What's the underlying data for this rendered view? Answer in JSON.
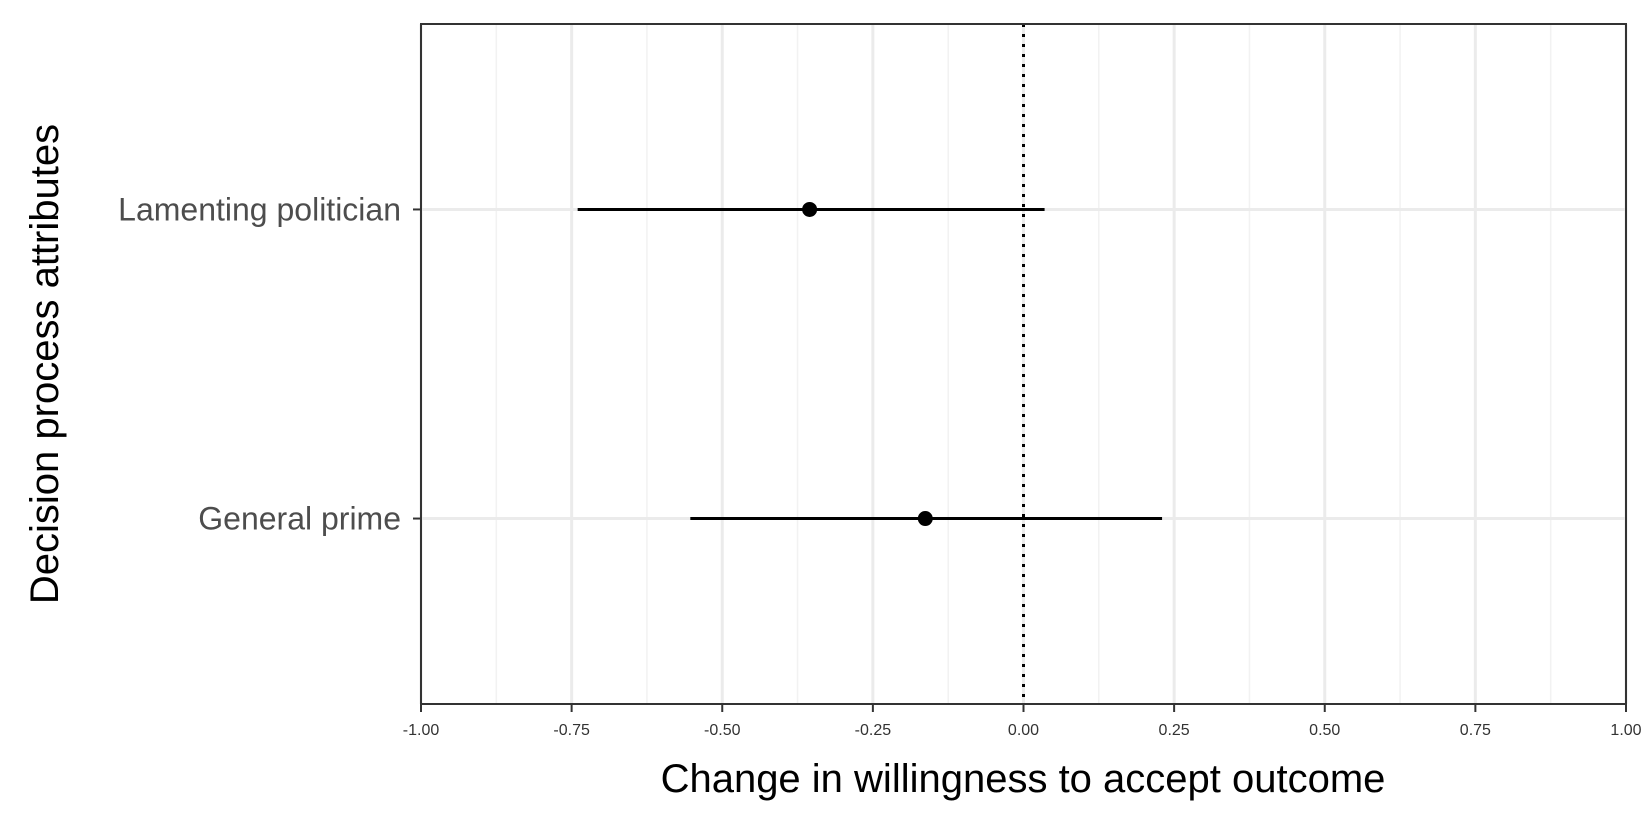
{
  "chart_data": {
    "type": "scatter",
    "subtype": "coefficient-plot-with-intervals",
    "xlabel": "Change in willingness to accept outcome",
    "ylabel": "Decision process attributes",
    "xlim": [
      -1.0,
      1.0
    ],
    "x_ticks": [
      "-1.00",
      "-0.75",
      "-0.50",
      "-0.25",
      "0.00",
      "0.25",
      "0.50",
      "0.75",
      "1.00"
    ],
    "x_tick_values": [
      -1.0,
      -0.75,
      -0.5,
      -0.25,
      0.0,
      0.25,
      0.5,
      0.75,
      1.0
    ],
    "categories": [
      "Lamenting politician",
      "General prime"
    ],
    "points": [
      {
        "label": "Lamenting politician",
        "estimate": -0.355,
        "lower": -0.74,
        "upper": 0.035
      },
      {
        "label": "General prime",
        "estimate": -0.163,
        "lower": -0.553,
        "upper": 0.23
      }
    ],
    "reference_line": {
      "x": 0.0,
      "style": "dotted"
    },
    "grid": true,
    "legend": "none",
    "colors": {
      "panel_border": "#333333",
      "grid_major": "#ebebeb",
      "grid_minor": "#f2f2f2",
      "marks": "#000000"
    }
  }
}
